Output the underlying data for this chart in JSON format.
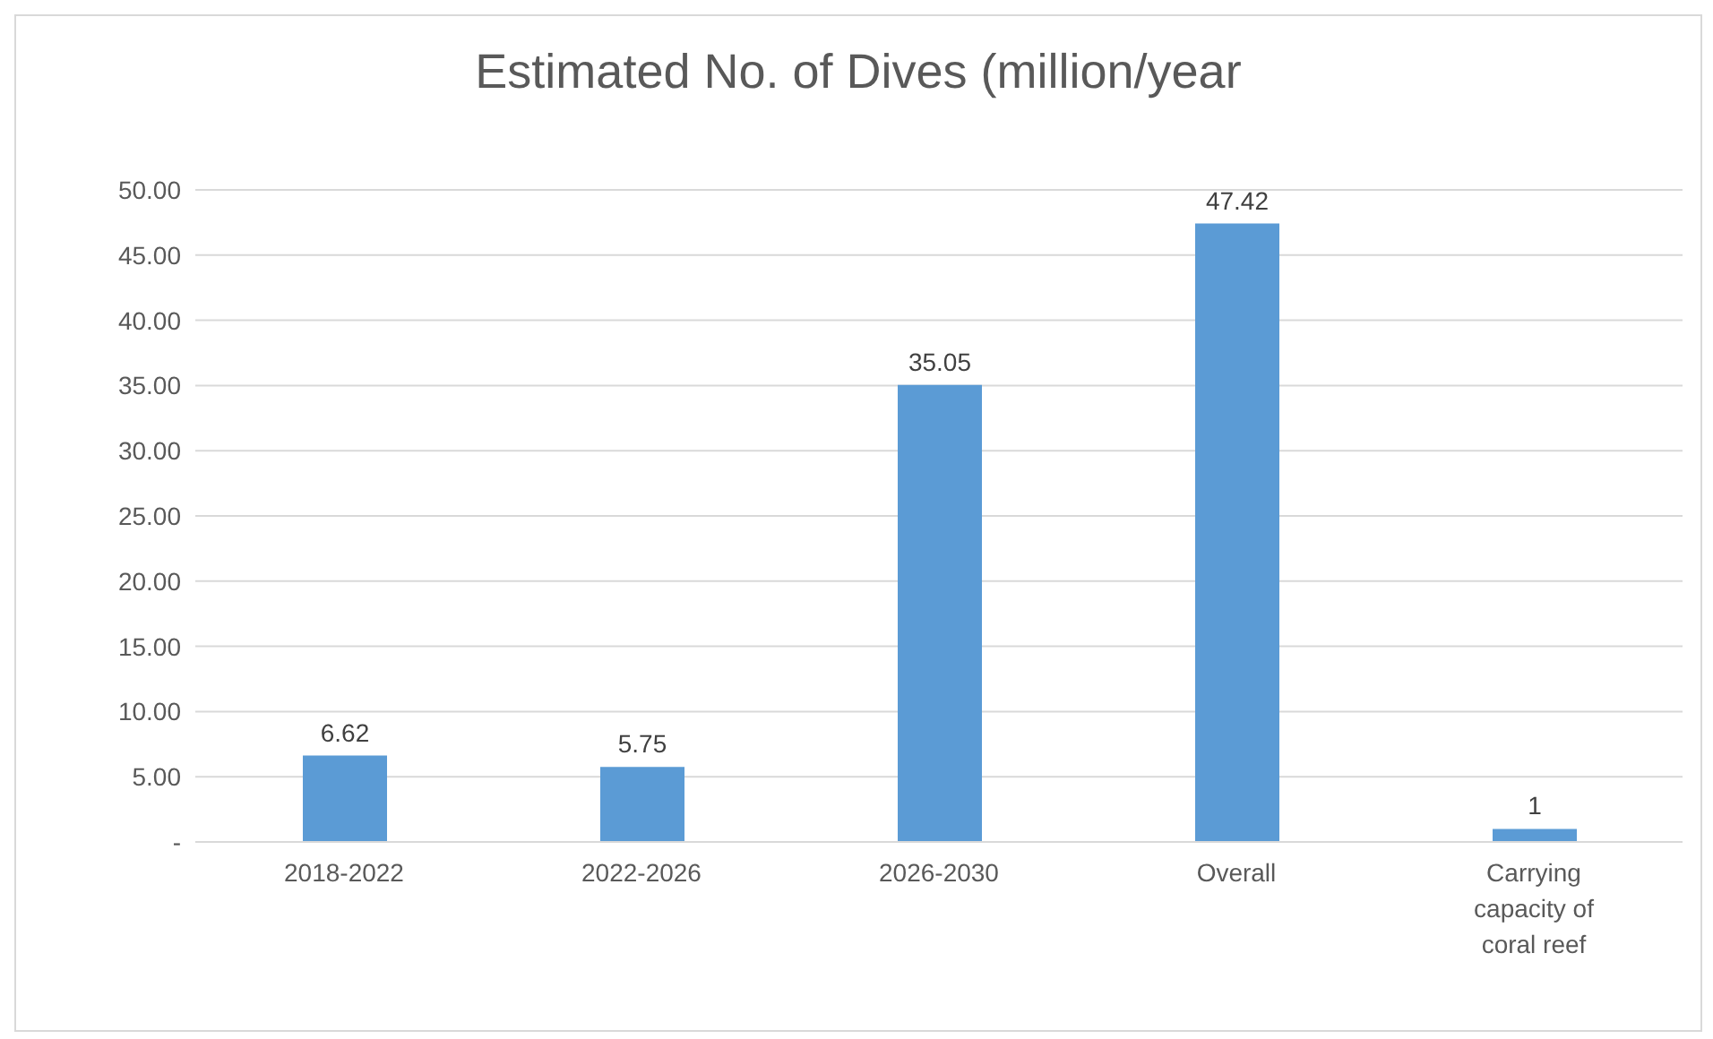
{
  "chart_data": {
    "type": "bar",
    "title": "Estimated No. of Dives (million/year",
    "categories": [
      "2018-2022",
      "2022-2026",
      "2026-2030",
      "Overall",
      "Carrying capacity of coral reef"
    ],
    "values": [
      6.62,
      5.75,
      35.05,
      47.42,
      1
    ],
    "color": "#5b9bd5",
    "ylim": [
      0,
      50
    ],
    "yticks": [
      {
        "value": 0,
        "label": "-"
      },
      {
        "value": 5,
        "label": "5.00"
      },
      {
        "value": 10,
        "label": "10.00"
      },
      {
        "value": 15,
        "label": "15.00"
      },
      {
        "value": 20,
        "label": "20.00"
      },
      {
        "value": 25,
        "label": "25.00"
      },
      {
        "value": 30,
        "label": "30.00"
      },
      {
        "value": 35,
        "label": "35.00"
      },
      {
        "value": 40,
        "label": "40.00"
      },
      {
        "value": 45,
        "label": "45.00"
      },
      {
        "value": 50,
        "label": "50.00"
      }
    ],
    "grid": "y",
    "data_labels": true,
    "legend": false
  }
}
